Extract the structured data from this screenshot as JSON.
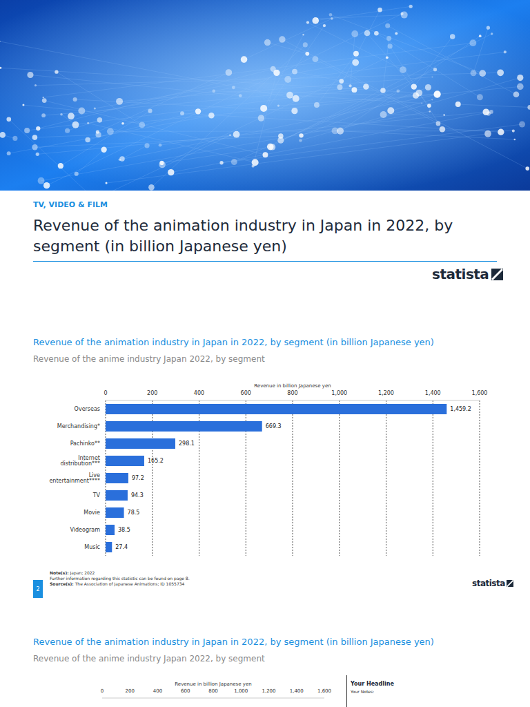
{
  "page": {
    "category_label": "TV, VIDEO & FILM",
    "title": "Revenue of the animation industry in Japan in 2022, by segment (in billion Japanese yen)",
    "logo": "statista",
    "note_label": "Note(s):",
    "note": "Japan; 2022",
    "further_info": "Further information regarding this statistic can be found on page 8.",
    "source_label": "Source(s):",
    "source": "The Association of Japanese Animations; ID 1055734",
    "page_number": "2",
    "second_section": {
      "title": "Revenue of the animation industry in Japan in 2022, by segment (in billion Japanese yen)",
      "subtitle": "Revenue of the anime industry Japan 2022, by segment",
      "x_label": "Revenue in billion Japanese yen",
      "headline": "Your Headline",
      "notes_label": "Your Notes:"
    }
  },
  "chart_data": {
    "type": "bar",
    "orientation": "horizontal",
    "title": "Revenue of the animation industry in Japan in 2022, by segment (in billion Japanese yen)",
    "subtitle": "Revenue of the anime industry Japan 2022, by segment",
    "x_label": "Revenue in billion Japanese yen",
    "categories": [
      "Overseas",
      "Merchandising*",
      "Pachinko**",
      "Internet distribution***",
      "Live entertainment****",
      "TV",
      "Movie",
      "Videogram",
      "Music"
    ],
    "values": [
      1459.2,
      669.3,
      298.1,
      165.2,
      97.2,
      94.3,
      78.5,
      38.5,
      27.4
    ],
    "value_labels": [
      "1,459.2",
      "669.3",
      "298.1",
      "165.2",
      "97.2",
      "94.3",
      "78.5",
      "38.5",
      "27.4"
    ],
    "color": "#2a6fdb",
    "xlim": [
      0,
      1600
    ],
    "xticks": [
      0,
      200,
      400,
      600,
      800,
      {
        "value": 1000,
        "label": "1,000"
      },
      {
        "value": 1200,
        "label": "1,200"
      },
      {
        "value": 1400,
        "label": "1,400"
      },
      {
        "value": 1600,
        "label": "1,600"
      }
    ],
    "grid": true,
    "data_labels": true
  }
}
